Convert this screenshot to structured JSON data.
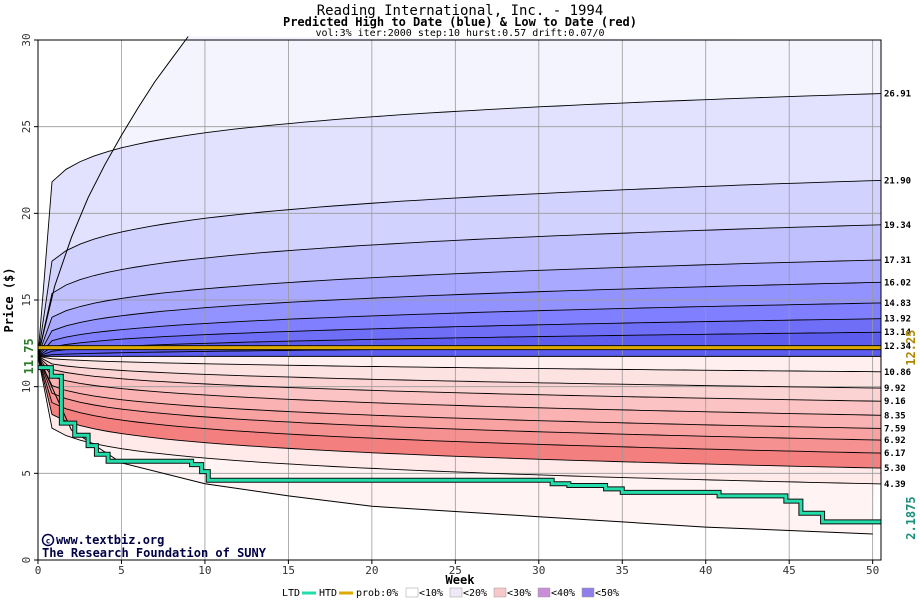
{
  "chart_data": {
    "type": "area",
    "title": "Reading International, Inc. - 1994",
    "subtitle": "Predicted High to Date (blue) &  Low to Date (red)",
    "params": "vol:3% iter:2000 step:10 hurst:0.57 drift:0.07/0",
    "xlabel": "Week",
    "ylabel": "Price ($)",
    "xlim": [
      0,
      50.5
    ],
    "ylim": [
      0,
      30
    ],
    "xticks": [
      0,
      5,
      10,
      15,
      20,
      25,
      30,
      35,
      40,
      45,
      50
    ],
    "yticks": [
      0,
      5,
      10,
      15,
      20,
      25,
      30
    ],
    "grid": true,
    "start_price": 11.75,
    "start_label": "11.75",
    "current_price": 12.25,
    "current_label": "12.25",
    "low_to_date_final": 2.1875,
    "low_to_date_label": "2.1875",
    "high_quantiles": [
      {
        "label": "26.91",
        "value": 26.91,
        "bulge": 0.1
      },
      {
        "label": "21.90",
        "value": 21.9,
        "bulge": 0.15
      },
      {
        "label": "19.34",
        "value": 19.34,
        "bulge": 0.18
      },
      {
        "label": "17.31",
        "value": 17.31,
        "bulge": 0.22
      },
      {
        "label": "16.02",
        "value": 16.02,
        "bulge": 0.26
      },
      {
        "label": "14.83",
        "value": 14.83,
        "bulge": 0.3
      },
      {
        "label": "13.92",
        "value": 13.92,
        "bulge": 0.34
      },
      {
        "label": "13.14",
        "value": 13.14,
        "bulge": 0.38
      },
      {
        "label": "12.34",
        "value": 12.34,
        "bulge": 0.45
      }
    ],
    "high_extreme": {
      "x": [
        0,
        1,
        2,
        3,
        4,
        5,
        6,
        7,
        8,
        9
      ],
      "y": [
        11.75,
        15.8,
        18.6,
        20.9,
        22.8,
        24.5,
        26.1,
        27.6,
        28.9,
        30.2
      ]
    },
    "low_quantiles": [
      {
        "label": "10.86",
        "value": 10.86,
        "bulge": 0.45
      },
      {
        "label": "9.92",
        "value": 9.92,
        "bulge": 0.35
      },
      {
        "label": "9.16",
        "value": 9.16,
        "bulge": 0.3
      },
      {
        "label": "8.35",
        "value": 8.35,
        "bulge": 0.26
      },
      {
        "label": "7.59",
        "value": 7.59,
        "bulge": 0.22
      },
      {
        "label": "6.92",
        "value": 6.92,
        "bulge": 0.2
      },
      {
        "label": "6.17",
        "value": 6.17,
        "bulge": 0.18
      },
      {
        "label": "5.30",
        "value": 5.3,
        "bulge": 0.16
      },
      {
        "label": "4.39",
        "value": 4.39,
        "bulge": 0.14
      }
    ],
    "low_extreme": {
      "x": [
        0,
        2,
        5,
        10,
        15,
        20,
        25,
        30,
        35,
        40,
        45,
        50
      ],
      "y": [
        11.75,
        7.5,
        5.6,
        4.4,
        3.7,
        3.1,
        2.8,
        2.5,
        2.2,
        1.9,
        1.7,
        1.5
      ]
    },
    "ltd_series": {
      "name": "LTD",
      "x": [
        0,
        0.8,
        0.8,
        1.4,
        1.4,
        2.2,
        2.2,
        3.0,
        3.0,
        3.5,
        3.5,
        4.2,
        4.2,
        9.2,
        9.2,
        9.8,
        9.8,
        10.2,
        10.2,
        30.8,
        30.8,
        31.8,
        31.8,
        34.0,
        34.0,
        35.0,
        35.0,
        40.8,
        40.8,
        44.8,
        44.8,
        45.7,
        45.7,
        47.0,
        47.0,
        50.5
      ],
      "y": [
        11.1,
        11.1,
        10.6,
        10.6,
        7.9,
        7.9,
        7.2,
        7.2,
        6.6,
        6.6,
        6.1,
        6.1,
        5.7,
        5.7,
        5.5,
        5.5,
        5.1,
        5.1,
        4.6,
        4.6,
        4.4,
        4.4,
        4.3,
        4.3,
        4.1,
        4.1,
        3.9,
        3.9,
        3.7,
        3.7,
        3.4,
        3.4,
        2.7,
        2.7,
        2.2,
        2.2
      ]
    },
    "htd_series": {
      "name": "HTD",
      "x": [
        0,
        50.5
      ],
      "y": [
        12.25,
        12.25
      ]
    },
    "colors": {
      "htd": "#ddaa00",
      "ltd": "#22ddaa",
      "blue_bands": [
        "#f4f4ff",
        "#e2e2ff",
        "#d2d2ff",
        "#c0c0ff",
        "#a9a9ff",
        "#9393ff",
        "#7f7fff",
        "#6e6ef7",
        "#5c5cef"
      ],
      "red_bands": [
        "#ffefef",
        "#fde2e2",
        "#fcd3d3",
        "#fbc3c3",
        "#fab2b2",
        "#f8a2a2",
        "#f69191",
        "#f37f7f",
        "#ffe9e9"
      ]
    },
    "legend": {
      "ltd_label": "LTD",
      "htd_label": "HTD",
      "prob_label": "prob:0%",
      "buckets": [
        {
          "label": "<10%",
          "color": "#ffffff"
        },
        {
          "label": "<20%",
          "color": "#f0e8f4"
        },
        {
          "label": "<30%",
          "color": "#f7c8c8"
        },
        {
          "label": "<40%",
          "color": "#c88fd8"
        },
        {
          "label": "<50%",
          "color": "#8f7fe8"
        }
      ],
      "placement": "bottom"
    }
  },
  "credits": {
    "site": "www.textbiz.org",
    "org": "The Research Foundation of SUNY"
  }
}
